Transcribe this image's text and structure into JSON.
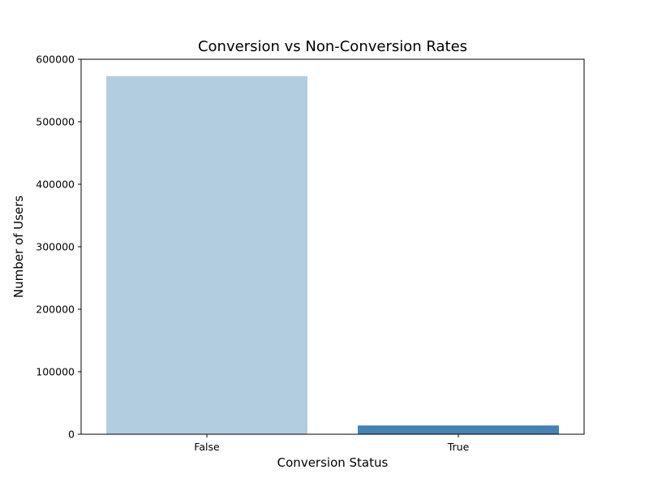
{
  "chart_data": {
    "type": "bar",
    "title": "Conversion vs Non-Conversion Rates",
    "xlabel": "Conversion Status",
    "ylabel": "Number of Users",
    "categories": [
      "False",
      "True"
    ],
    "values": [
      573000,
      14000
    ],
    "ylim": [
      0,
      600000
    ],
    "yticks": [
      0,
      100000,
      200000,
      300000,
      400000,
      500000,
      600000
    ],
    "ytick_labels": [
      "0",
      "100000",
      "200000",
      "300000",
      "400000",
      "500000",
      "600000"
    ],
    "colors": [
      "#b3cde0",
      "#4682b4"
    ],
    "grid": false,
    "legend": "none"
  }
}
